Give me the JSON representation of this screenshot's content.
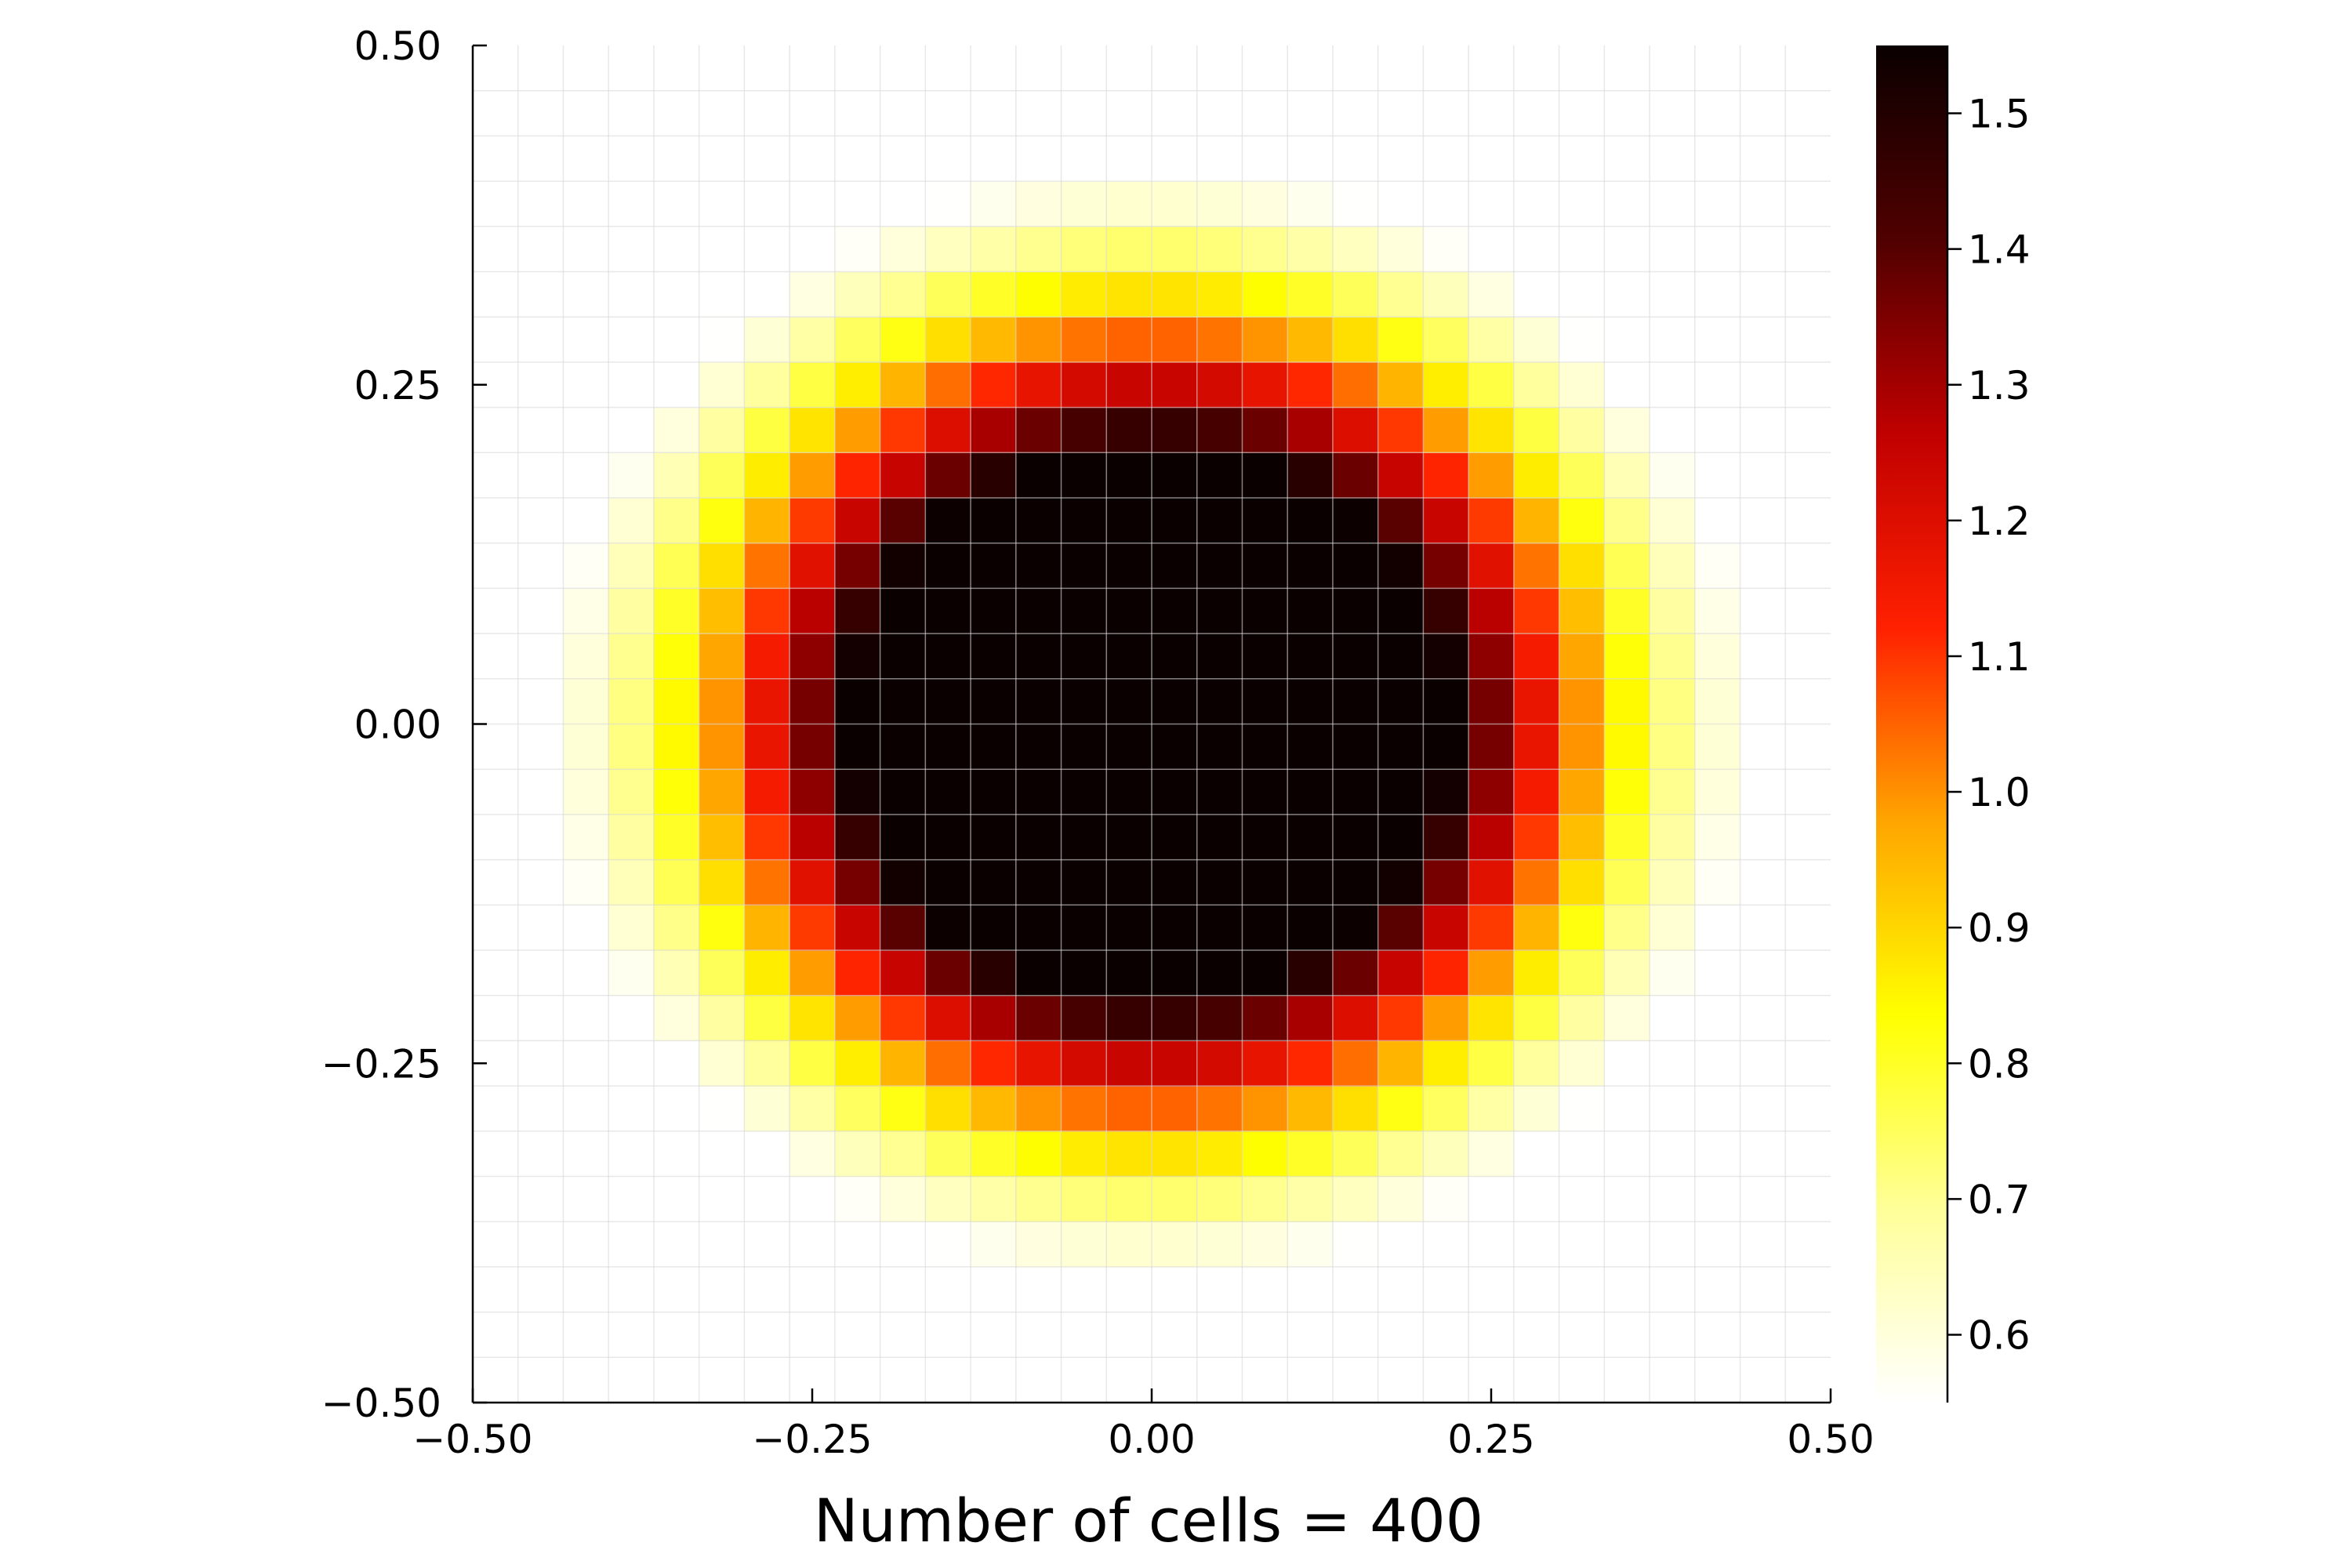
{
  "chart_data": {
    "type": "heatmap",
    "title": "",
    "xlabel": "Number of cells = 400",
    "ylabel": "",
    "xlim": [
      -0.5,
      0.5
    ],
    "ylim": [
      -0.5,
      0.5
    ],
    "x_ticks": [
      -0.5,
      -0.25,
      0.0,
      0.25,
      0.5
    ],
    "x_tick_labels": [
      "−0.50",
      "−0.25",
      "0.00",
      "0.25",
      "0.50"
    ],
    "y_ticks": [
      -0.5,
      -0.25,
      0.0,
      0.25,
      0.5
    ],
    "y_tick_labels": [
      "−0.50",
      "−0.25",
      "0.00",
      "0.25",
      "0.50"
    ],
    "grid": true,
    "grid_cells": [
      30,
      30
    ],
    "colormap": "hot (reversed: white → yellow → red → black)",
    "colorbar": {
      "range": [
        0.55,
        1.55
      ],
      "ticks": [
        0.6,
        0.7,
        0.8,
        0.9,
        1.0,
        1.1,
        1.2,
        1.3,
        1.4,
        1.5
      ],
      "tick_labels": [
        "0.6",
        "0.7",
        "0.8",
        "0.9",
        "1.0",
        "1.1",
        "1.2",
        "1.3",
        "1.4",
        "1.5"
      ]
    },
    "field": {
      "description": "density approx. radially symmetric about (0,0), slightly elongated horizontally; ~1.55 inside radius ~0.22, decays to ~0.5 outside radius ~0.5",
      "center": [
        0.0,
        0.0
      ],
      "plateau_value": 1.55,
      "background_value": 0.5,
      "core_radius": 0.22,
      "outer_radius": 0.48
    }
  },
  "colors": {
    "background": "#ffffff",
    "axis": "#000000",
    "grid": "#d9d9d9",
    "cmap_stops": [
      "#ffffff",
      "#ffff99",
      "#ffff00",
      "#ffa500",
      "#ff2000",
      "#c00000",
      "#500000",
      "#0a0000"
    ]
  }
}
